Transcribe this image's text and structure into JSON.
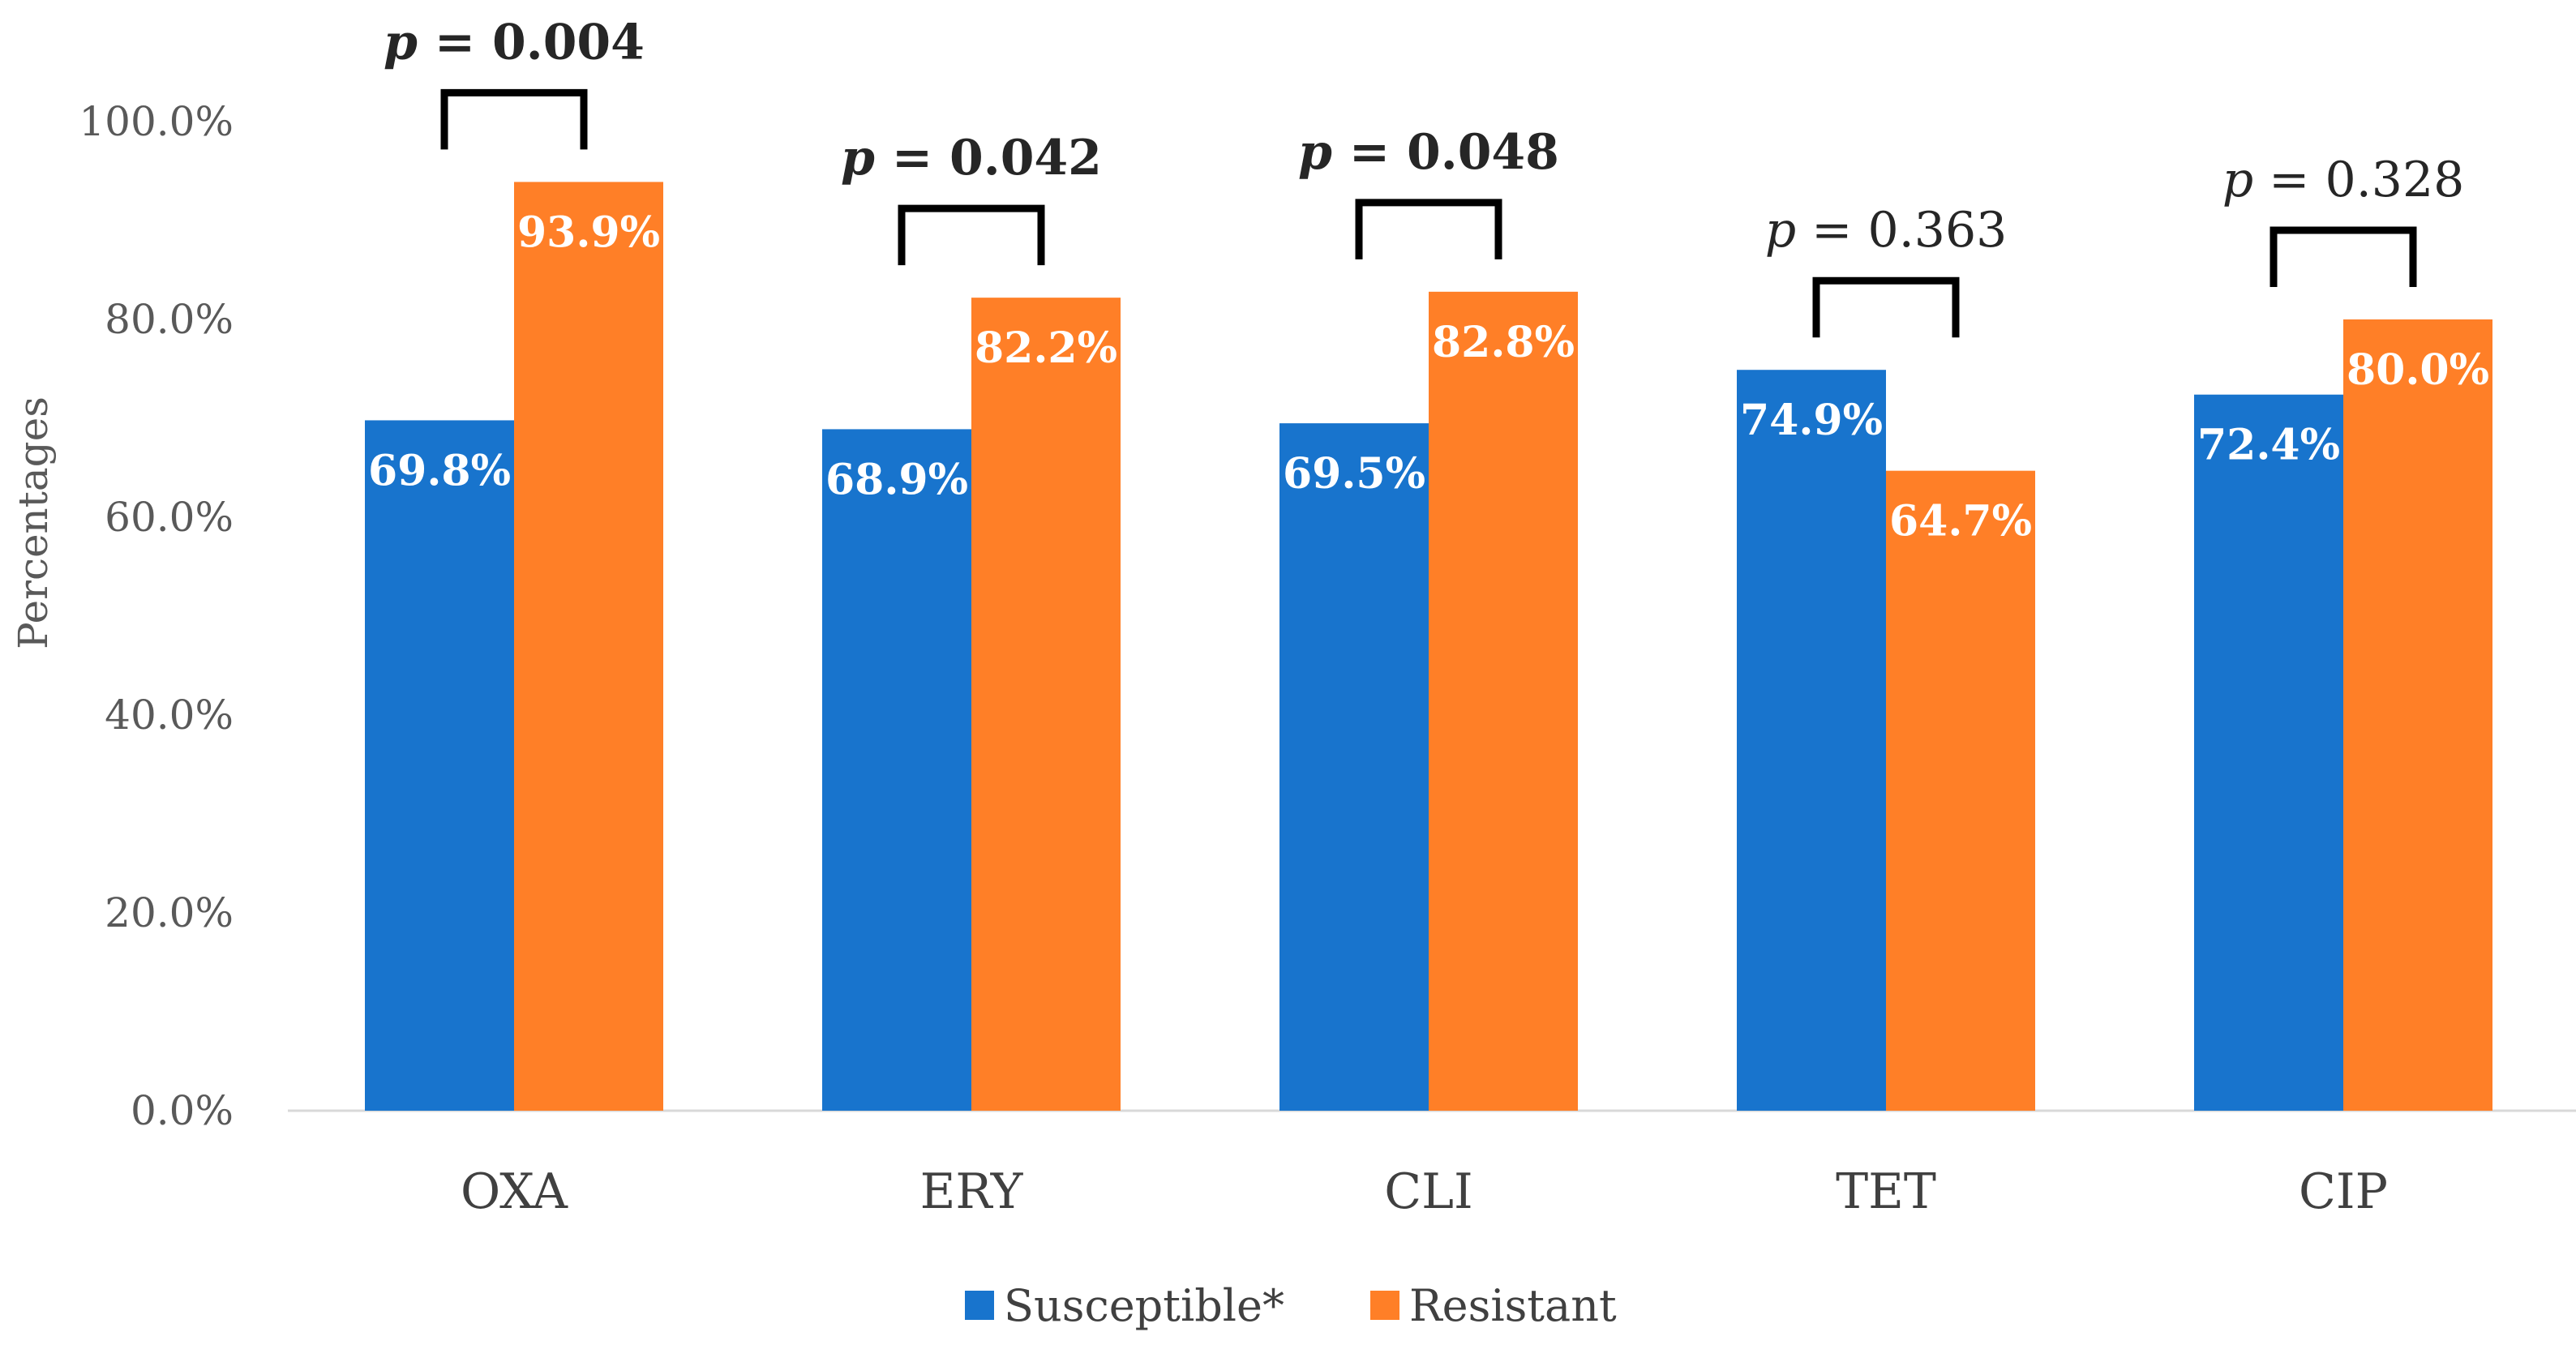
{
  "chart_data": {
    "type": "bar",
    "title": "",
    "xlabel": "",
    "ylabel": "Percentages",
    "ylim": [
      0,
      100
    ],
    "ytick_values": [
      0,
      20,
      40,
      60,
      80,
      100
    ],
    "ytick_labels": [
      "0.0%",
      "20.0%",
      "40.0%",
      "60.0%",
      "80.0%",
      "100.0%"
    ],
    "categories": [
      "OXA",
      "ERY",
      "CLI",
      "TET",
      "CIP"
    ],
    "series": [
      {
        "name": "Susceptible*",
        "color": "#1874CD",
        "values": [
          69.8,
          68.9,
          69.5,
          74.9,
          72.4
        ],
        "labels": [
          "69.8%",
          "68.9%",
          "69.5%",
          "74.9%",
          "72.4%"
        ]
      },
      {
        "name": "Resistant",
        "color": "#FF7F27",
        "values": [
          93.9,
          82.2,
          82.8,
          64.7,
          80.0
        ],
        "labels": [
          "93.9%",
          "82.2%",
          "82.8%",
          "64.7%",
          "80.0%"
        ]
      }
    ],
    "annotations": [
      {
        "category": "OXA",
        "p_symbol": "p",
        "p_text": " = 0.004",
        "significant": true
      },
      {
        "category": "ERY",
        "p_symbol": "p",
        "p_text": " = 0.042",
        "significant": true
      },
      {
        "category": "CLI",
        "p_symbol": "p",
        "p_text": " = 0.048",
        "significant": true
      },
      {
        "category": "TET",
        "p_symbol": "p",
        "p_text": " = 0.363",
        "significant": false
      },
      {
        "category": "CIP",
        "p_symbol": "p",
        "p_text": " = 0.328",
        "significant": false
      }
    ],
    "legend_position": "bottom-center",
    "grid": false
  }
}
